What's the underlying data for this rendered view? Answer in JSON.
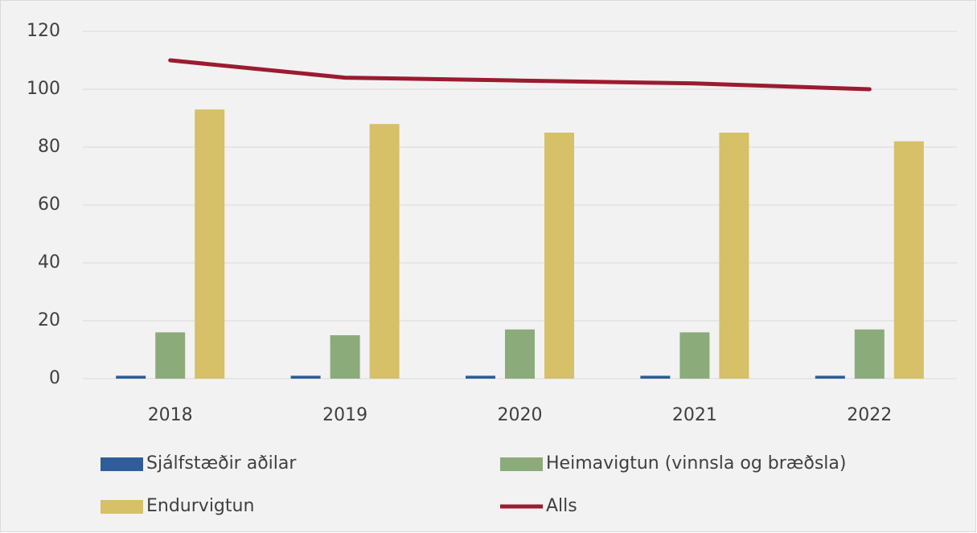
{
  "chart_data": {
    "type": "bar",
    "categories": [
      "2018",
      "2019",
      "2020",
      "2021",
      "2022"
    ],
    "series": [
      {
        "name": "Sjálfstæðir aðilar",
        "type": "bar",
        "color": "#2e5d9a",
        "values": [
          1,
          1,
          1,
          1,
          1
        ]
      },
      {
        "name": "Heimavigtun (vinnsla og bræðsla)",
        "type": "bar",
        "color": "#8cab7a",
        "values": [
          16,
          15,
          17,
          16,
          17
        ]
      },
      {
        "name": "Endurvigtun",
        "type": "bar",
        "color": "#d6c068",
        "values": [
          93,
          88,
          85,
          85,
          82
        ]
      },
      {
        "name": "Alls",
        "type": "line",
        "color": "#9b1b30",
        "values": [
          110,
          104,
          103,
          102,
          100
        ]
      }
    ],
    "ylim": [
      0,
      120
    ],
    "yticks": [
      0,
      20,
      40,
      60,
      80,
      100,
      120
    ],
    "grid": true,
    "legend": "bottom"
  }
}
